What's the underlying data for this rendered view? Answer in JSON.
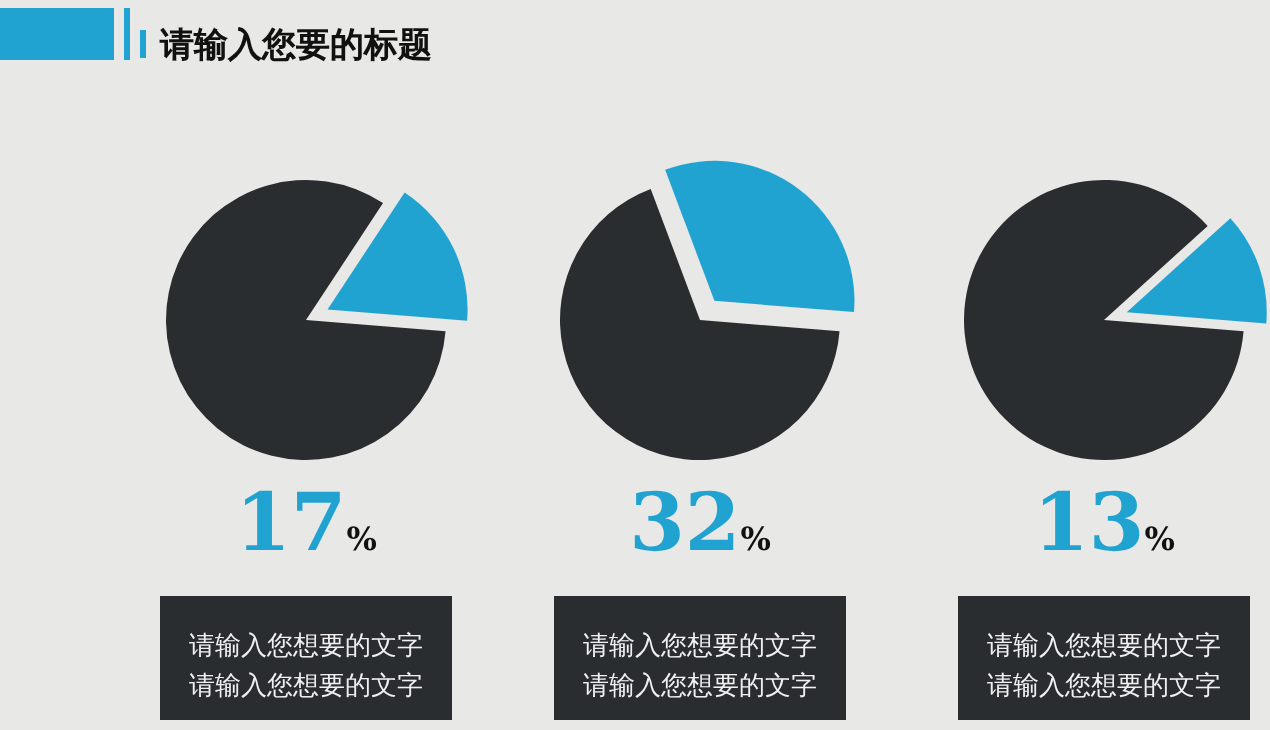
{
  "chart_data": [
    {
      "type": "pie",
      "title": "请输入您要的标题",
      "categories": [
        null,
        null
      ],
      "values": [
        17,
        83
      ],
      "colors": [
        "#21a3d1",
        "#2a2d30"
      ],
      "annotations": [
        "17%",
        "请输入您想要的文字",
        "请输入您想要的文字"
      ]
    },
    {
      "type": "pie",
      "categories": [
        null,
        null
      ],
      "values": [
        32,
        68
      ],
      "colors": [
        "#21a3d1",
        "#2a2d30"
      ],
      "annotations": [
        "32%",
        "请输入您想要的文字",
        "请输入您想要的文字"
      ]
    },
    {
      "type": "pie",
      "categories": [
        null,
        null
      ],
      "values": [
        13,
        87
      ],
      "colors": [
        "#21a3d1",
        "#2a2d30"
      ],
      "annotations": [
        "13%",
        "请输入您想要的文字",
        "请输入您想要的文字"
      ]
    }
  ]
}
